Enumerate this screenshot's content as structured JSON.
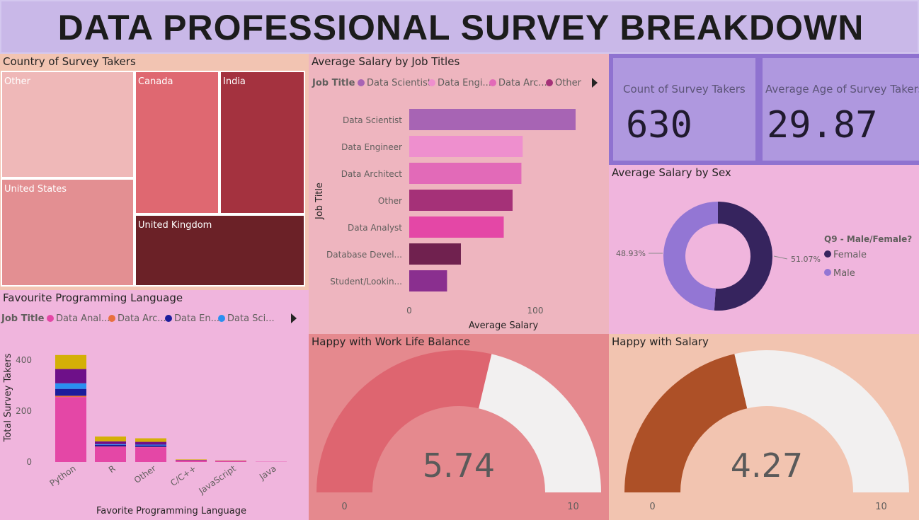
{
  "header": {
    "title": "DATA PROFESSIONAL SURVEY BREAKDOWN"
  },
  "colors": {
    "data_scientist": "#a764b4",
    "data_engineer": "#ee8fce",
    "data_architect": "#e26ab8",
    "other": "#a53178",
    "data_analyst": "#e447a6",
    "database_developer": "#70214f",
    "student": "#8a2f8f",
    "female": "#36245e",
    "male": "#9376d4",
    "wlb_gauge": "#de6570",
    "salary_gauge": "#ad5027",
    "gauge_rest": "#f2f0f0"
  },
  "kpis": [
    {
      "label": "Count of Survey Takers",
      "value": "630"
    },
    {
      "label": "Average Age of Survey Takers",
      "value": "29.87"
    }
  ],
  "chart_data": [
    {
      "type": "treemap",
      "title": "Country of Survey Takers",
      "items": [
        {
          "label": "Other",
          "color": "#efb8b8"
        },
        {
          "label": "United States",
          "color": "#e38f92"
        },
        {
          "label": "Canada",
          "color": "#df6871"
        },
        {
          "label": "India",
          "color": "#a4323f"
        },
        {
          "label": "United Kingdom",
          "color": "#6b2127"
        }
      ]
    },
    {
      "type": "bar",
      "orientation": "horizontal",
      "title": "Average Salary by Job Titles",
      "legend_title": "Job Title",
      "legend": [
        "Data Scientist",
        "Data Engi...",
        "Data Arc...",
        "Other"
      ],
      "categories": [
        "Data Scientist",
        "Data Engineer",
        "Data Architect",
        "Other",
        "Data Analyst",
        "Database Devel...",
        "Student/Lookin..."
      ],
      "values": [
        132,
        90,
        89,
        82,
        75,
        41,
        30
      ],
      "xlabel": "Average Salary",
      "ylabel": "Job Title",
      "xlim": [
        0,
        155
      ],
      "xticks": [
        "0",
        "100"
      ],
      "xtick_values": [
        0,
        100
      ]
    },
    {
      "type": "pie",
      "title": "Average Salary by Sex",
      "legend_title": "Q9 - Male/Female?",
      "legend_placement": "right",
      "slices": [
        {
          "name": "Female",
          "value": 51.07,
          "label": "51.07%"
        },
        {
          "name": "Male",
          "value": 48.93,
          "label": "48.93%"
        }
      ]
    },
    {
      "type": "bar",
      "stacked": true,
      "title": "Favourite Programming Language",
      "legend_title": "Job Title",
      "legend": [
        {
          "name": "Data Anal...",
          "color": "#e447a6"
        },
        {
          "name": "Data Arc...",
          "color": "#e8703e"
        },
        {
          "name": "Data En...",
          "color": "#1c1c9c"
        },
        {
          "name": "Data Sci...",
          "color": "#2a8ff0"
        }
      ],
      "categories": [
        "Python",
        "R",
        "Other",
        "C/C++",
        "JavaScript",
        "Java"
      ],
      "series": [
        {
          "name": "Data Analyst",
          "color": "#e447a6",
          "values": [
            255,
            60,
            58,
            6,
            4,
            1
          ]
        },
        {
          "name": "Data Architect",
          "color": "#e8703e",
          "values": [
            5,
            1,
            1,
            0,
            0,
            0
          ]
        },
        {
          "name": "Data Engineer",
          "color": "#1c1c9c",
          "values": [
            27,
            6,
            6,
            0,
            0,
            0
          ]
        },
        {
          "name": "Data Scientist",
          "color": "#2a8ff0",
          "values": [
            22,
            3,
            3,
            0,
            0,
            0
          ]
        },
        {
          "name": "Other",
          "color": "#6e1089",
          "values": [
            56,
            11,
            11,
            2,
            1,
            0
          ]
        },
        {
          "name": "Student",
          "color": "#d4b007",
          "values": [
            55,
            19,
            14,
            2,
            1,
            0
          ]
        }
      ],
      "xlabel": "Favorite Programming Language",
      "ylabel": "Total Survey Takers",
      "ylim": [
        0,
        500
      ],
      "yticks": [
        "0",
        "200",
        "400"
      ],
      "ytick_values": [
        0,
        200,
        400
      ]
    },
    {
      "type": "gauge",
      "title": "Happy with Work Life Balance",
      "value": 5.74,
      "value_label": "5.74",
      "min": 0,
      "max": 10,
      "min_label": "0",
      "max_label": "10"
    },
    {
      "type": "gauge",
      "title": "Happy with Salary",
      "value": 4.27,
      "value_label": "4.27",
      "min": 0,
      "max": 10,
      "min_label": "0",
      "max_label": "10"
    }
  ]
}
